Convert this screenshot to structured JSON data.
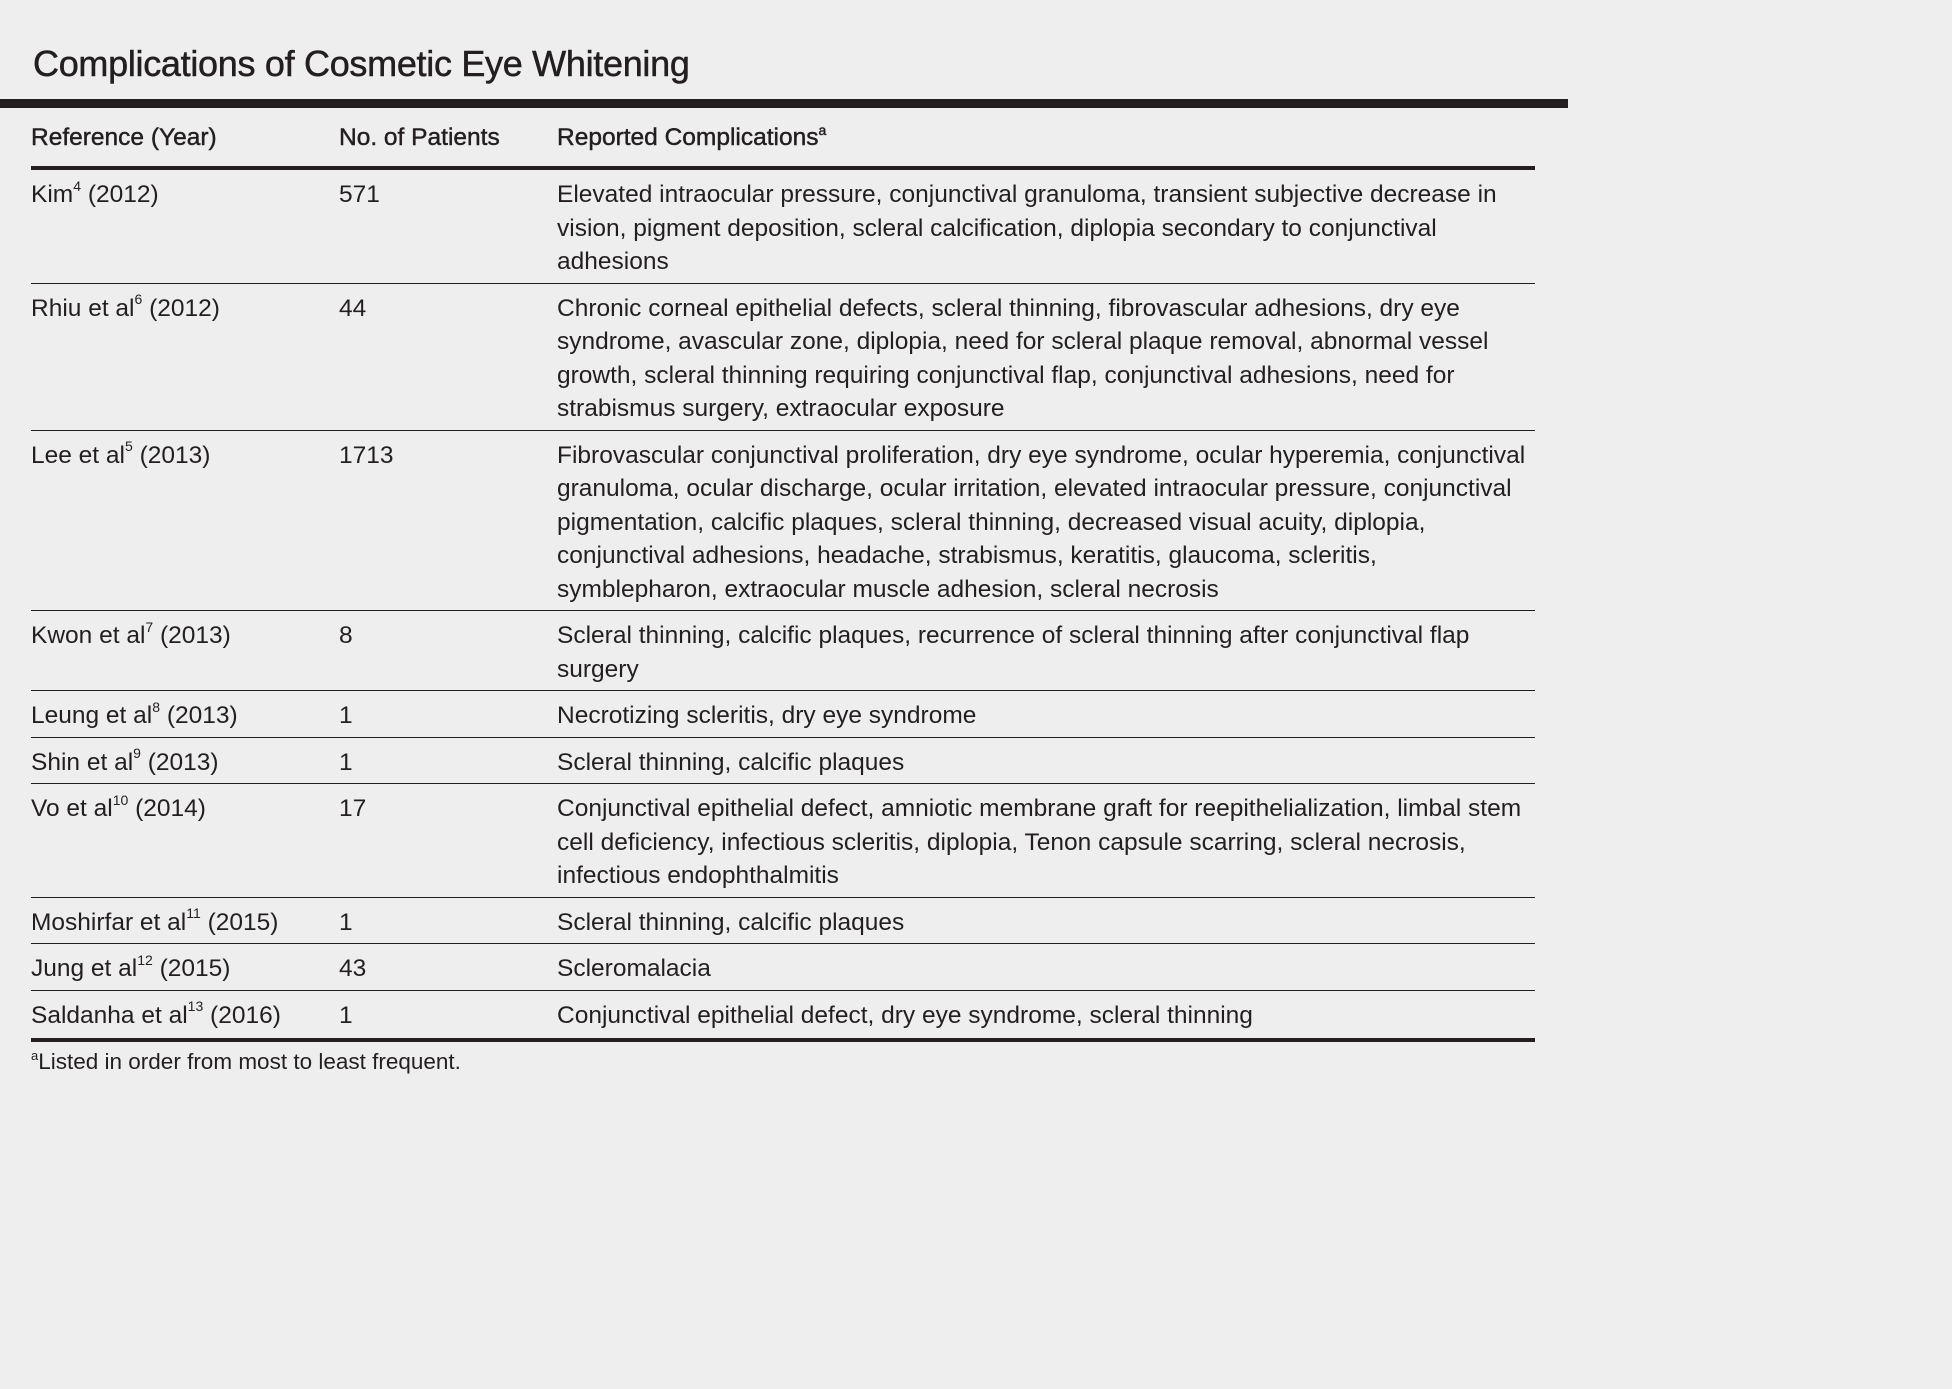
{
  "title": "Complications of Cosmetic Eye Whitening",
  "columns": {
    "reference": "Reference (Year)",
    "patients": "No. of Patients",
    "complications": "Reported Complications",
    "complications_note_mark": "a"
  },
  "rows": [
    {
      "author": "Kim",
      "ref": "4",
      "year": "(2012)",
      "patients": "571",
      "complications": "Elevated intraocular pressure, conjunctival granuloma, transient subjective decrease in vision, pigment deposition, scleral calcification, diplopia secondary to conjunctival adhesions"
    },
    {
      "author": "Rhiu et al",
      "ref": "6",
      "year": "(2012)",
      "patients": "44",
      "complications": "Chronic corneal epithelial defects, scleral thinning, fibrovascular adhesions, dry eye syndrome, avascular zone, diplopia, need for scleral plaque removal, abnormal vessel growth, scleral thinning requiring conjunctival flap, conjunctival adhesions, need for strabismus surgery, extraocular exposure"
    },
    {
      "author": "Lee et al",
      "ref": "5",
      "year": "(2013)",
      "patients": "1713",
      "complications": "Fibrovascular conjunctival proliferation, dry eye syndrome, ocular hyperemia, conjunctival granuloma, ocular discharge, ocular irritation, elevated intraocular pressure, conjunctival pigmentation, calcific plaques, scleral thinning, decreased visual acuity, diplopia, conjunctival adhesions, headache, strabismus, keratitis, glaucoma, scleritis, symblepharon, extraocular muscle adhesion, scleral necrosis"
    },
    {
      "author": "Kwon et al",
      "ref": "7",
      "year": "(2013)",
      "patients": "8",
      "complications": "Scleral thinning, calcific plaques, recurrence of scleral thinning after conjunctival flap surgery"
    },
    {
      "author": "Leung et al",
      "ref": "8",
      "year": "(2013)",
      "patients": "1",
      "complications": "Necrotizing scleritis, dry eye syndrome"
    },
    {
      "author": "Shin et al",
      "ref": "9",
      "year": "(2013)",
      "patients": "1",
      "complications": "Scleral thinning, calcific plaques"
    },
    {
      "author": "Vo et al",
      "ref": "10",
      "year": "(2014)",
      "patients": "17",
      "complications": "Conjunctival epithelial defect, amniotic membrane graft for reepithelialization, limbal stem cell deficiency, infectious scleritis, diplopia, Tenon capsule scarring, scleral necrosis, infectious endophthalmitis"
    },
    {
      "author": "Moshirfar et al",
      "ref": "11",
      "year": "(2015)",
      "patients": "1",
      "complications": "Scleral thinning, calcific plaques"
    },
    {
      "author": "Jung et al",
      "ref": "12",
      "year": "(2015)",
      "patients": "43",
      "complications": "Scleromalacia"
    },
    {
      "author": "Saldanha et al",
      "ref": "13",
      "year": "(2016)",
      "patients": "1",
      "complications": "Conjunctival epithelial defect, dry eye syndrome, scleral thinning"
    }
  ],
  "footnote": {
    "mark": "a",
    "text": "Listed in order from most to least frequent."
  }
}
